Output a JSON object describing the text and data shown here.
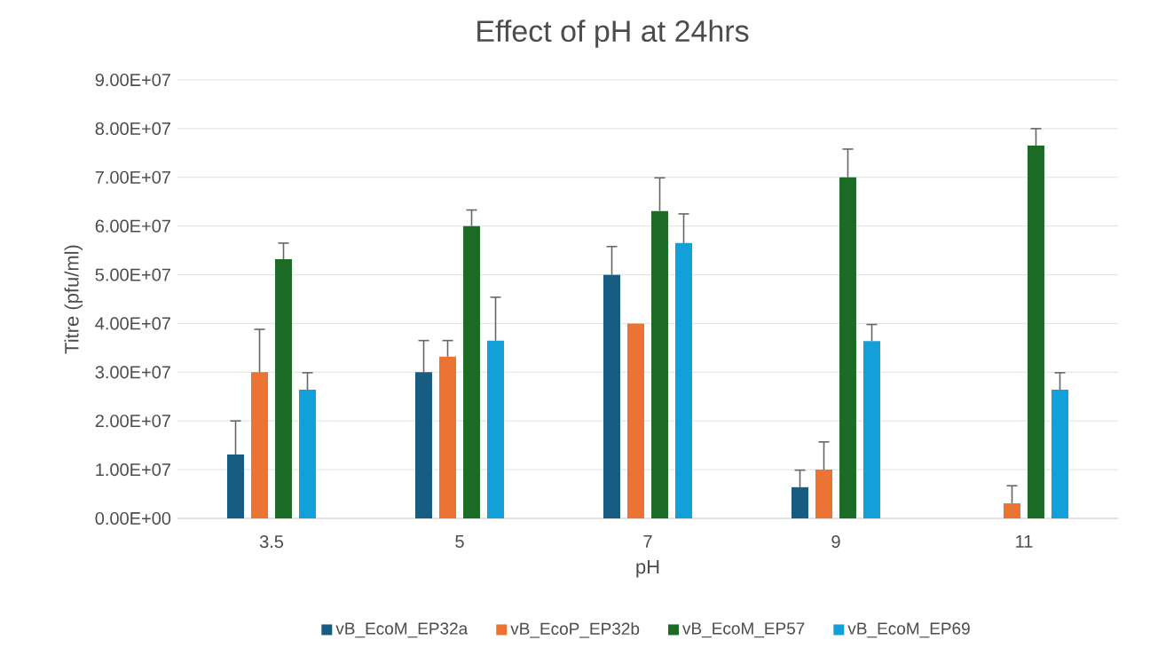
{
  "chart_data": {
    "type": "bar",
    "title": "Effect of pH at 24hrs",
    "xlabel": "pH",
    "ylabel": "Titre (pfu/ml)",
    "categories": [
      "3.5",
      "5",
      "7",
      "9",
      "11"
    ],
    "series": [
      {
        "name": "vB_EcoM_EP32a",
        "color": "#175d81",
        "values": [
          13100000,
          30000000,
          50000000,
          6400000,
          0
        ],
        "errors": [
          [
            13100000,
            20000000
          ],
          [
            30000000,
            36500000
          ],
          [
            50000000,
            55800000
          ],
          [
            6400000,
            9900000
          ],
          null
        ]
      },
      {
        "name": "vB_EcoP_EP32b",
        "color": "#eb7333",
        "values": [
          30000000,
          33200000,
          40000000,
          10000000,
          3100000
        ],
        "errors": [
          [
            30000000,
            38800000
          ],
          [
            33200000,
            36500000
          ],
          null,
          [
            10000000,
            15700000
          ],
          [
            3100000,
            6700000
          ]
        ]
      },
      {
        "name": "vB_EcoM_EP57",
        "color": "#1c6b27",
        "values": [
          53200000,
          60000000,
          63100000,
          70000000,
          76500000
        ],
        "errors": [
          [
            53200000,
            56500000
          ],
          [
            60000000,
            63300000
          ],
          [
            63100000,
            69900000
          ],
          [
            70000000,
            75800000
          ],
          [
            76500000,
            80000000
          ]
        ]
      },
      {
        "name": "vB_EcoM_EP69",
        "color": "#13a0d8",
        "values": [
          26400000,
          36500000,
          56500000,
          36400000,
          26400000
        ],
        "errors": [
          [
            26400000,
            29900000
          ],
          [
            36500000,
            45400000
          ],
          [
            56500000,
            62500000
          ],
          [
            36400000,
            39800000
          ],
          [
            26400000,
            29900000
          ]
        ]
      }
    ],
    "ylim": [
      0,
      90000000
    ],
    "yticks": [
      {
        "value": 0,
        "label": "0.00E+00"
      },
      {
        "value": 10000000,
        "label": "1.00E+07"
      },
      {
        "value": 20000000,
        "label": "2.00E+07"
      },
      {
        "value": 30000000,
        "label": "3.00E+07"
      },
      {
        "value": 40000000,
        "label": "4.00E+07"
      },
      {
        "value": 50000000,
        "label": "5.00E+07"
      },
      {
        "value": 60000000,
        "label": "6.00E+07"
      },
      {
        "value": 70000000,
        "label": "7.00E+07"
      },
      {
        "value": 80000000,
        "label": "8.00E+07"
      },
      {
        "value": 90000000,
        "label": "9.00E+07"
      }
    ],
    "grid": "y",
    "legend": "bottom"
  }
}
